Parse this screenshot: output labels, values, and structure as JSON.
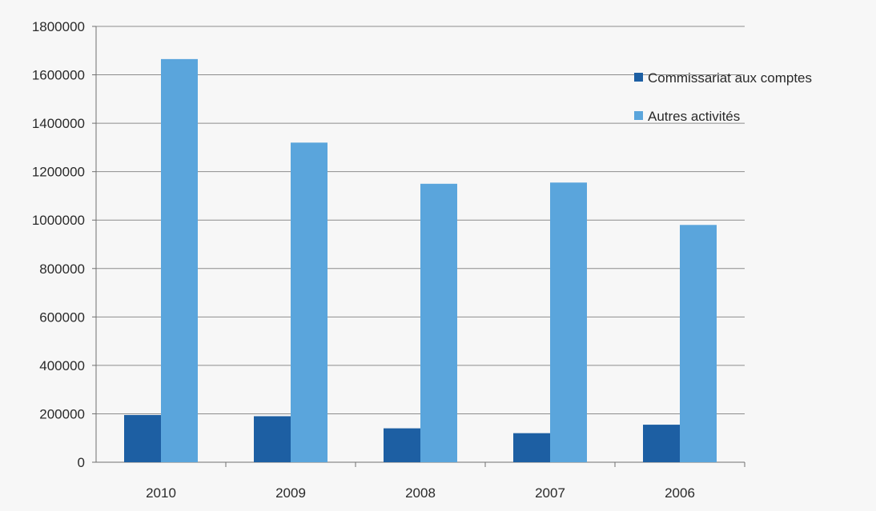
{
  "chart_data": {
    "type": "bar",
    "title": "",
    "xlabel": "",
    "ylabel": "",
    "categories": [
      "2010",
      "2009",
      "2008",
      "2007",
      "2006"
    ],
    "series": [
      {
        "name": "Commissariat aux comptes",
        "values": [
          195000,
          190000,
          140000,
          120000,
          155000
        ]
      },
      {
        "name": "Autres activités",
        "values": [
          1665000,
          1320000,
          1150000,
          1155000,
          980000
        ]
      }
    ],
    "ylim": [
      0,
      1800000
    ],
    "yticks": [
      "0",
      "200000",
      "400000",
      "600000",
      "800000",
      "1000000",
      "1200000",
      "1400000",
      "1600000",
      "1800000"
    ],
    "grid": true,
    "legend_position": "right",
    "colors": {
      "series_0": "#1d5fa3",
      "series_1": "#5aa5dc",
      "grid": "#8c8c8c",
      "axis": "#6f6f6f"
    }
  }
}
